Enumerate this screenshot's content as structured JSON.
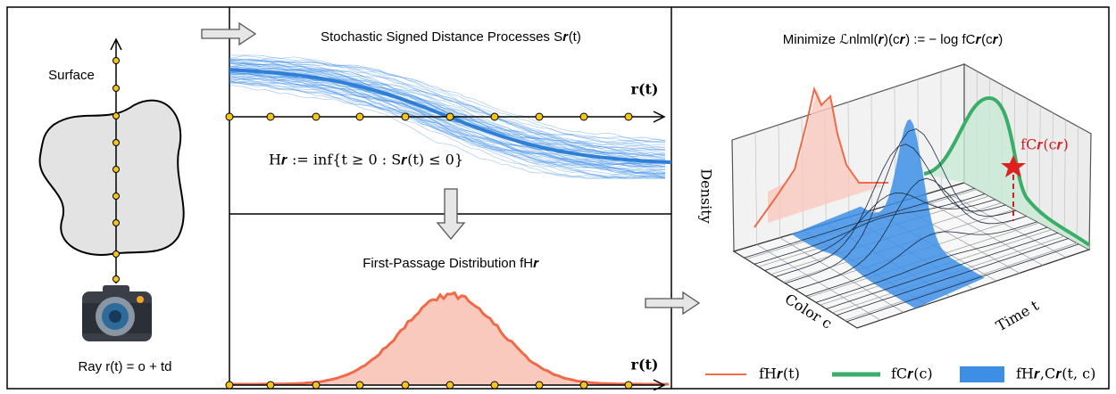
{
  "left": {
    "surface_label": "Surface",
    "ray_label": "Ray r(t) = o + td"
  },
  "process_panel": {
    "title": "Stochastic Signed Distance Processes S𝒓(t)",
    "axis_label": "r(t)",
    "hitting_time": "H𝒓 := inf{t ≥ 0 : S𝒓(t) ≤ 0}"
  },
  "passage_panel": {
    "title": "First-Passage Distribution fH𝒓",
    "axis_label": "r(t)"
  },
  "loss_panel": {
    "title": "Minimize ℒnlml(𝒓)(c𝒓) := − log fC𝒓(c𝒓)",
    "density_label": "Density",
    "color_label": "Color c",
    "time_label": "Time t",
    "point_label": "fC𝒓(c𝒓)"
  },
  "legend": {
    "items": [
      "fH𝒓(t)",
      "fC𝒓(c)",
      "fH𝒓,C𝒓(t, c)"
    ]
  }
}
